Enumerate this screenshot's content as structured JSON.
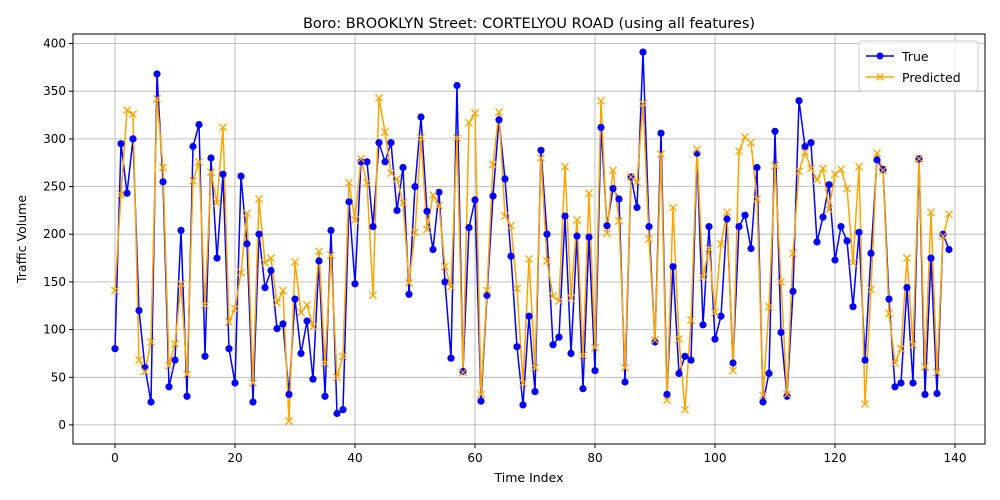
{
  "chart_data": {
    "type": "line",
    "title": "Boro: BROOKLYN Street: CORTELYOU ROAD (using all features)",
    "xlabel": "Time Index",
    "ylabel": "Traffic Volume",
    "xlim": [
      -7,
      145
    ],
    "ylim": [
      -20,
      410
    ],
    "xticks": [
      0,
      20,
      40,
      60,
      80,
      100,
      120,
      140
    ],
    "yticks": [
      0,
      50,
      100,
      150,
      200,
      250,
      300,
      350,
      400
    ],
    "grid": true,
    "legend_position": "top-right",
    "series": [
      {
        "name": "True",
        "color": "#0000ff",
        "marker": "circle",
        "values": [
          80,
          295,
          243,
          300,
          120,
          60,
          24,
          368,
          255,
          40,
          68,
          204,
          30,
          292,
          315,
          72,
          280,
          175,
          263,
          80,
          44,
          261,
          190,
          24,
          200,
          144,
          162,
          101,
          106,
          32,
          132,
          75,
          109,
          48,
          172,
          30,
          204,
          12,
          16,
          234,
          148,
          276,
          276,
          208,
          296,
          276,
          296,
          225,
          270,
          137,
          250,
          323,
          224,
          184,
          244,
          150,
          70,
          356,
          56,
          207,
          236,
          25,
          136,
          240,
          320,
          258,
          177,
          82,
          21,
          114,
          35,
          288,
          200,
          84,
          92,
          219,
          75,
          198,
          38,
          197,
          57,
          312,
          209,
          248,
          237,
          45,
          260,
          228,
          391,
          208,
          87,
          306,
          32,
          166,
          54,
          72,
          68,
          285,
          105,
          208,
          90,
          114,
          216,
          65,
          208,
          220,
          185,
          270,
          24,
          54,
          308,
          97,
          30,
          140,
          340,
          292,
          296,
          192,
          218,
          252,
          173,
          208,
          193,
          124,
          202,
          68,
          180,
          278,
          268,
          132,
          40,
          44,
          144,
          44,
          279,
          32,
          175,
          33,
          200,
          184
        ]
      },
      {
        "name": "Predicted",
        "color": "#ffa500",
        "marker": "x",
        "values": [
          141,
          242,
          330,
          326,
          68,
          56,
          87,
          342,
          270,
          62,
          85,
          148,
          53,
          256,
          276,
          126,
          265,
          233,
          312,
          108,
          122,
          160,
          222,
          44,
          237,
          170,
          175,
          128,
          141,
          4,
          171,
          118,
          126,
          103,
          182,
          65,
          178,
          50,
          72,
          254,
          215,
          279,
          254,
          136,
          343,
          307,
          264,
          258,
          233,
          149,
          202,
          301,
          205,
          241,
          230,
          166,
          145,
          301,
          55,
          317,
          327,
          32,
          141,
          273,
          328,
          219,
          209,
          143,
          44,
          174,
          60,
          280,
          172,
          135,
          130,
          271,
          133,
          215,
          73,
          243,
          81,
          340,
          201,
          267,
          214,
          60,
          260,
          255,
          337,
          195,
          89,
          284,
          26,
          228,
          90,
          16,
          110,
          289,
          155,
          185,
          118,
          190,
          223,
          57,
          287,
          302,
          296,
          237,
          31,
          124,
          272,
          150,
          32,
          180,
          266,
          286,
          269,
          257,
          269,
          226,
          263,
          268,
          248,
          170,
          271,
          22,
          142,
          285,
          267,
          117,
          65,
          80,
          175,
          84,
          279,
          61,
          223,
          55,
          198,
          221
        ]
      }
    ]
  }
}
